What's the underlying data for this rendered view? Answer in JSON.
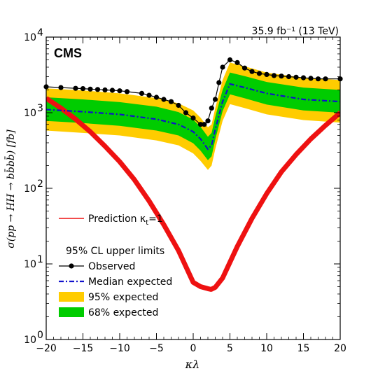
{
  "chart_data": {
    "type": "line",
    "title": "",
    "lumi_label": "35.9 fb⁻¹ (13 TeV)",
    "experiment_label": "CMS",
    "xlabel": "κλ",
    "ylabel": "σ(pp → HH → bb̄bb̄) [fb]",
    "xlim": [
      -20,
      20
    ],
    "ylim": [
      1,
      10000
    ],
    "yscale": "log",
    "x_ticks": [
      -20,
      -15,
      -10,
      -5,
      0,
      5,
      10,
      15,
      20
    ],
    "x_tick_labels": [
      "−20",
      "−15",
      "−10",
      "−5",
      "0",
      "5",
      "10",
      "15",
      "20"
    ],
    "y_ticks": [
      1,
      10,
      100,
      1000,
      10000
    ],
    "y_tick_labels": [
      "10",
      "10",
      "10",
      "10",
      "10"
    ],
    "y_tick_exponents": [
      "0",
      "1",
      "2",
      "3",
      "4"
    ],
    "grid": false,
    "legend_placement": "bottom-left",
    "legend_header": "95% CL upper limits",
    "prediction_legend": "Prediction κ",
    "prediction_legend_sub": "t",
    "prediction_legend_tail": "=1",
    "colors": {
      "observed": "#000000",
      "expected": "#1010cc",
      "band95": "#ffcc00",
      "band68": "#00cc00",
      "prediction": "#ee1111"
    },
    "series": [
      {
        "name": "Observed",
        "x": [
          -20,
          -18,
          -16,
          -15,
          -14,
          -13,
          -12,
          -11,
          -10,
          -9,
          -7,
          -6,
          -5,
          -4,
          -3,
          -2,
          -1,
          0,
          1,
          1.5,
          2,
          2.5,
          3,
          3.5,
          4,
          5,
          6,
          7,
          8,
          9,
          10,
          11,
          12,
          13,
          14,
          15,
          16,
          17,
          18,
          20
        ],
        "y": [
          2200,
          2150,
          2100,
          2080,
          2050,
          2030,
          2000,
          1980,
          1950,
          1900,
          1800,
          1700,
          1600,
          1500,
          1400,
          1250,
          1000,
          850,
          700,
          700,
          780,
          1150,
          1500,
          2500,
          4000,
          5000,
          4600,
          3900,
          3500,
          3300,
          3200,
          3100,
          3050,
          3000,
          2950,
          2900,
          2850,
          2800,
          2800,
          2800
        ]
      },
      {
        "name": "Median expected",
        "x": [
          -20,
          -15,
          -10,
          -5,
          -2,
          0,
          1,
          2,
          2.5,
          3,
          4,
          5,
          7,
          10,
          15,
          20
        ],
        "y": [
          1100,
          1030,
          950,
          820,
          700,
          560,
          450,
          330,
          370,
          600,
          1400,
          2400,
          2150,
          1800,
          1500,
          1400
        ]
      },
      {
        "name": "95% expected",
        "x": [
          -20,
          -15,
          -10,
          -5,
          -2,
          0,
          1,
          2,
          2.5,
          3,
          4,
          5,
          7,
          10,
          15,
          20
        ],
        "lower": [
          580,
          540,
          500,
          430,
          370,
          290,
          230,
          175,
          200,
          330,
          780,
          1300,
          1150,
          950,
          800,
          740
        ],
        "upper": [
          2100,
          1970,
          1800,
          1560,
          1330,
          1070,
          860,
          640,
          700,
          1150,
          2700,
          4600,
          4100,
          3400,
          2900,
          2700
        ]
      },
      {
        "name": "68% expected",
        "x": [
          -20,
          -15,
          -10,
          -5,
          -2,
          0,
          1,
          2,
          2.5,
          3,
          4,
          5,
          7,
          10,
          15,
          20
        ],
        "lower": [
          780,
          730,
          670,
          580,
          500,
          395,
          315,
          235,
          265,
          440,
          1050,
          1750,
          1550,
          1280,
          1070,
          1000
        ],
        "upper": [
          1600,
          1500,
          1380,
          1200,
          1020,
          810,
          650,
          480,
          540,
          880,
          2000,
          3400,
          3050,
          2550,
          2150,
          2000
        ]
      },
      {
        "name": "Prediction κt=1",
        "x": [
          -20,
          -18,
          -16,
          -14,
          -12,
          -10,
          -8,
          -6,
          -4,
          -2,
          0,
          1,
          2,
          2.45,
          3,
          4,
          6,
          8,
          10,
          12,
          14,
          16,
          18,
          20
        ],
        "y": [
          1550,
          1150,
          820,
          560,
          360,
          225,
          130,
          68,
          33,
          15,
          5.7,
          5.0,
          4.7,
          4.6,
          4.9,
          6.5,
          17,
          40,
          85,
          165,
          280,
          450,
          680,
          1000
        ]
      }
    ],
    "legend": {
      "observed": "Observed",
      "median": "Median expected",
      "band95": "95% expected",
      "band68": "68% expected"
    }
  }
}
